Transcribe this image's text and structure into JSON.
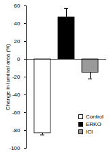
{
  "chart_data": {
    "type": "bar",
    "y_label": "Change in luminal area (%)",
    "categories": [
      "Control",
      "ERKO",
      "ICI"
    ],
    "values": [
      -83,
      47,
      -15
    ],
    "errors": [
      2,
      10,
      7
    ],
    "colors": [
      "#ffffff",
      "#000000",
      "#9a9a9a"
    ],
    "ylim": [
      -100,
      60
    ],
    "yticks": [
      -100,
      -80,
      -60,
      -40,
      -20,
      0,
      20,
      40,
      60
    ],
    "tick_labels": "y",
    "legend": "lower right"
  }
}
